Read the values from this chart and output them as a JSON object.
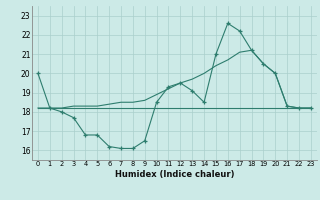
{
  "xlabel": "Humidex (Indice chaleur)",
  "background_color": "#cceae7",
  "grid_color": "#aacfcc",
  "line_color": "#2e7d6e",
  "xlim": [
    -0.5,
    23.5
  ],
  "ylim": [
    15.5,
    23.5
  ],
  "xticks": [
    0,
    1,
    2,
    3,
    4,
    5,
    6,
    7,
    8,
    9,
    10,
    11,
    12,
    13,
    14,
    15,
    16,
    17,
    18,
    19,
    20,
    21,
    22,
    23
  ],
  "yticks": [
    16,
    17,
    18,
    19,
    20,
    21,
    22,
    23
  ],
  "line1_x": [
    0,
    1,
    2,
    3,
    4,
    5,
    6,
    7,
    8,
    9,
    10,
    11,
    12,
    13,
    14,
    15,
    16,
    17,
    18,
    19,
    20,
    21,
    22,
    23
  ],
  "line1_y": [
    20.0,
    18.2,
    18.0,
    17.7,
    16.8,
    16.8,
    16.2,
    16.1,
    16.1,
    16.5,
    18.5,
    19.3,
    19.5,
    19.1,
    18.5,
    21.0,
    22.6,
    22.2,
    21.2,
    20.5,
    20.0,
    18.3,
    18.2,
    18.2
  ],
  "line2_x": [
    0,
    1,
    2,
    3,
    4,
    5,
    6,
    7,
    8,
    9,
    10,
    11,
    12,
    13,
    14,
    15,
    16,
    17,
    18,
    19,
    20,
    21,
    22,
    23
  ],
  "line2_y": [
    18.2,
    18.2,
    18.2,
    18.2,
    18.2,
    18.2,
    18.2,
    18.2,
    18.2,
    18.2,
    18.2,
    18.2,
    18.2,
    18.2,
    18.2,
    18.2,
    18.2,
    18.2,
    18.2,
    18.2,
    18.2,
    18.2,
    18.2,
    18.2
  ],
  "line3_x": [
    0,
    1,
    2,
    3,
    4,
    5,
    6,
    7,
    8,
    9,
    10,
    11,
    12,
    13,
    14,
    15,
    16,
    17,
    18,
    19,
    20,
    21,
    22,
    23
  ],
  "line3_y": [
    18.2,
    18.2,
    18.2,
    18.3,
    18.3,
    18.3,
    18.4,
    18.5,
    18.5,
    18.6,
    18.9,
    19.2,
    19.5,
    19.7,
    20.0,
    20.4,
    20.7,
    21.1,
    21.2,
    20.5,
    20.0,
    18.3,
    18.2,
    18.2
  ]
}
